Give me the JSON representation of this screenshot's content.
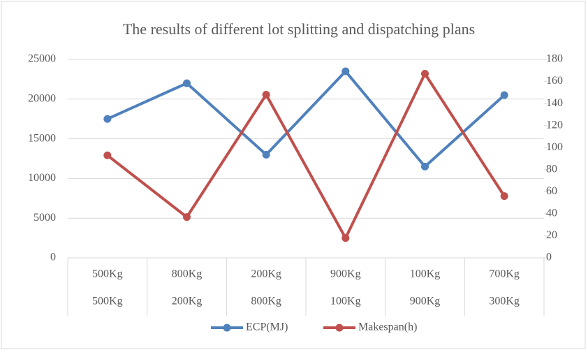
{
  "chart_data": {
    "type": "line",
    "title": "The results of different lot splitting and dispatching plans",
    "categories": [
      [
        "500Kg",
        "500Kg"
      ],
      [
        "800Kg",
        "200Kg"
      ],
      [
        "200Kg",
        "800Kg"
      ],
      [
        "900Kg",
        "100Kg"
      ],
      [
        "100Kg",
        "900Kg"
      ],
      [
        "700Kg",
        "300Kg"
      ]
    ],
    "series": [
      {
        "name": "ECP(MJ)",
        "color": "#4f81bd",
        "values": [
          17500,
          22000,
          13000,
          23500,
          11500,
          20500
        ]
      },
      {
        "name": "Makespan(h)",
        "color": "#c0504d",
        "axis": "y2",
        "values": [
          93,
          37,
          148,
          18,
          167,
          56
        ]
      }
    ],
    "ylim": [
      0,
      25000
    ],
    "yticks": [
      0,
      5000,
      10000,
      15000,
      20000,
      25000
    ],
    "y2lim": [
      0,
      180
    ],
    "y2ticks": [
      0,
      20,
      40,
      60,
      80,
      100,
      120,
      140,
      160,
      180
    ],
    "grid": true,
    "legend": "bottom"
  }
}
